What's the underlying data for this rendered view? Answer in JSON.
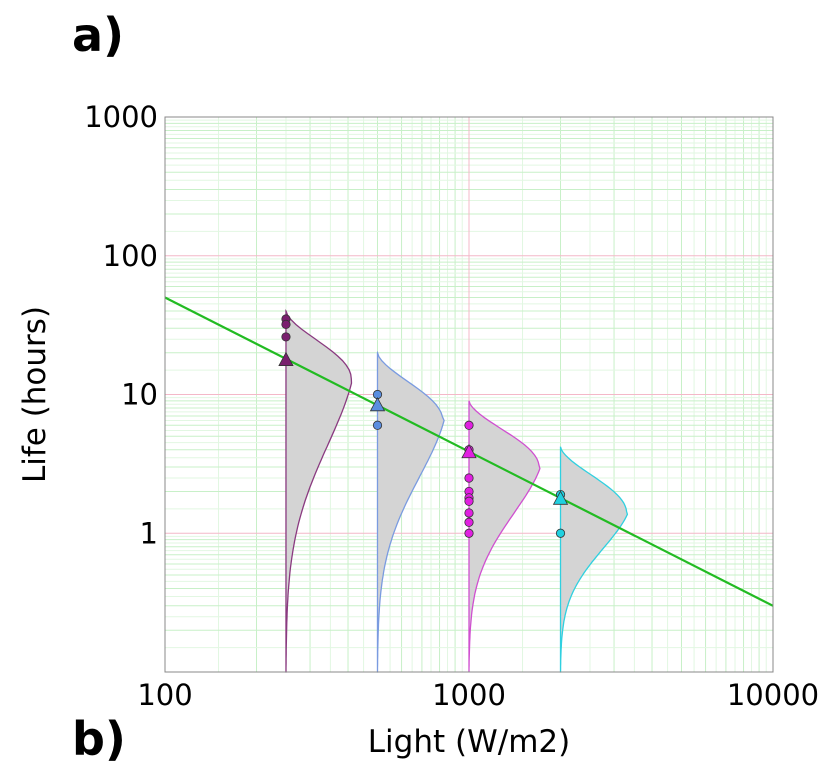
{
  "panel_labels": {
    "top": "a)",
    "bottom": "b)"
  },
  "chart_data": {
    "type": "scatter",
    "title": "",
    "xlabel": "Light (W/m2)",
    "ylabel": "Life (hours)",
    "x_scale": "log",
    "y_scale": "log",
    "xlim": [
      100,
      10000
    ],
    "ylim": [
      0.1,
      1000
    ],
    "x_ticks": [
      "100",
      "1000",
      "10000"
    ],
    "y_ticks": [
      "1",
      "10",
      "100",
      "1000"
    ],
    "grid": true,
    "fit_line": {
      "color": "#22bb22",
      "points": [
        [
          100,
          50
        ],
        [
          10000,
          0.3
        ]
      ]
    },
    "series": [
      {
        "stress": 250,
        "color": "#7a1f6e",
        "edge": "#8a3a80",
        "failures": [
          35,
          32,
          26
        ],
        "mean": 18,
        "pdf_upper": 40,
        "pdf_lower": 0.1,
        "pdf_peak": 13,
        "pdf_max_x": 410
      },
      {
        "stress": 500,
        "color": "#5b8ee0",
        "edge": "#7a9be0",
        "failures": [
          10,
          6
        ],
        "mean": 8.5,
        "pdf_upper": 20,
        "pdf_lower": 0.1,
        "pdf_peak": 6.5,
        "pdf_max_x": 820
      },
      {
        "stress": 1000,
        "color": "#e020e0",
        "edge": "#d050d0",
        "failures": [
          6,
          4,
          2.5,
          2,
          1.8,
          1.7,
          1.4,
          1.2,
          1.0
        ],
        "mean": 3.9,
        "pdf_upper": 9,
        "pdf_lower": 0.1,
        "pdf_peak": 3,
        "pdf_max_x": 1700
      },
      {
        "stress": 2000,
        "color": "#20d0e0",
        "edge": "#30d0e0",
        "failures": [
          1.9,
          1.0
        ],
        "mean": 1.8,
        "pdf_upper": 4.2,
        "pdf_lower": 0.1,
        "pdf_peak": 1.4,
        "pdf_max_x": 3300
      }
    ]
  }
}
